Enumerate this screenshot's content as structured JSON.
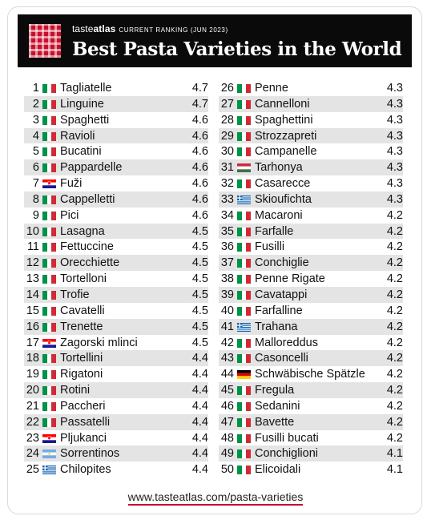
{
  "header": {
    "brand_regular": "taste",
    "brand_bold": "atlas",
    "ranking": "CURRENT RANKING (JUN 2023)",
    "title": "Best Pasta Varieties in the World"
  },
  "colors": {
    "accent_red": "#c8102e",
    "row_shade": "#e4e4e4",
    "header_bg": "#0a0a0a"
  },
  "flags": {
    "it": "italy-flag-icon",
    "hr": "croatia-flag-icon",
    "hu": "hungary-flag-icon",
    "gr": "greece-flag-icon",
    "de": "germany-flag-icon",
    "ar": "argentina-flag-icon"
  },
  "left_items": [
    {
      "rank": "1",
      "flag": "it",
      "name": "Tagliatelle",
      "score": "4.7"
    },
    {
      "rank": "2",
      "flag": "it",
      "name": "Linguine",
      "score": "4.7"
    },
    {
      "rank": "3",
      "flag": "it",
      "name": "Spaghetti",
      "score": "4.6"
    },
    {
      "rank": "4",
      "flag": "it",
      "name": "Ravioli",
      "score": "4.6"
    },
    {
      "rank": "5",
      "flag": "it",
      "name": "Bucatini",
      "score": "4.6"
    },
    {
      "rank": "6",
      "flag": "it",
      "name": "Pappardelle",
      "score": "4.6"
    },
    {
      "rank": "7",
      "flag": "hr",
      "name": "Fuži",
      "score": "4.6"
    },
    {
      "rank": "8",
      "flag": "it",
      "name": "Cappelletti",
      "score": "4.6"
    },
    {
      "rank": "9",
      "flag": "it",
      "name": "Pici",
      "score": "4.6"
    },
    {
      "rank": "10",
      "flag": "it",
      "name": "Lasagna",
      "score": "4.5"
    },
    {
      "rank": "11",
      "flag": "it",
      "name": "Fettuccine",
      "score": "4.5"
    },
    {
      "rank": "12",
      "flag": "it",
      "name": "Orecchiette",
      "score": "4.5"
    },
    {
      "rank": "13",
      "flag": "it",
      "name": "Tortelloni",
      "score": "4.5"
    },
    {
      "rank": "14",
      "flag": "it",
      "name": "Trofie",
      "score": "4.5"
    },
    {
      "rank": "15",
      "flag": "it",
      "name": "Cavatelli",
      "score": "4.5"
    },
    {
      "rank": "16",
      "flag": "it",
      "name": "Trenette",
      "score": "4.5"
    },
    {
      "rank": "17",
      "flag": "hr",
      "name": "Zagorski mlinci",
      "score": "4.5"
    },
    {
      "rank": "18",
      "flag": "it",
      "name": "Tortellini",
      "score": "4.4"
    },
    {
      "rank": "19",
      "flag": "it",
      "name": "Rigatoni",
      "score": "4.4"
    },
    {
      "rank": "20",
      "flag": "it",
      "name": "Rotini",
      "score": "4.4"
    },
    {
      "rank": "21",
      "flag": "it",
      "name": "Paccheri",
      "score": "4.4"
    },
    {
      "rank": "22",
      "flag": "it",
      "name": "Passatelli",
      "score": "4.4"
    },
    {
      "rank": "23",
      "flag": "hr",
      "name": "Pljukanci",
      "score": "4.4"
    },
    {
      "rank": "24",
      "flag": "ar",
      "name": "Sorrentinos",
      "score": "4.4"
    },
    {
      "rank": "25",
      "flag": "gr",
      "name": "Chilopites",
      "score": "4.4"
    }
  ],
  "right_items": [
    {
      "rank": "26",
      "flag": "it",
      "name": "Penne",
      "score": "4.3"
    },
    {
      "rank": "27",
      "flag": "it",
      "name": "Cannelloni",
      "score": "4.3"
    },
    {
      "rank": "28",
      "flag": "it",
      "name": "Spaghettini",
      "score": "4.3"
    },
    {
      "rank": "29",
      "flag": "it",
      "name": "Strozzapreti",
      "score": "4.3"
    },
    {
      "rank": "30",
      "flag": "it",
      "name": "Campanelle",
      "score": "4.3"
    },
    {
      "rank": "31",
      "flag": "hu",
      "name": "Tarhonya",
      "score": "4.3"
    },
    {
      "rank": "32",
      "flag": "it",
      "name": "Casarecce",
      "score": "4.3"
    },
    {
      "rank": "33",
      "flag": "gr",
      "name": "Skioufichta",
      "score": "4.3"
    },
    {
      "rank": "34",
      "flag": "it",
      "name": "Macaroni",
      "score": "4.2"
    },
    {
      "rank": "35",
      "flag": "it",
      "name": "Farfalle",
      "score": "4.2"
    },
    {
      "rank": "36",
      "flag": "it",
      "name": "Fusilli",
      "score": "4.2"
    },
    {
      "rank": "37",
      "flag": "it",
      "name": "Conchiglie",
      "score": "4.2"
    },
    {
      "rank": "38",
      "flag": "it",
      "name": "Penne Rigate",
      "score": "4.2"
    },
    {
      "rank": "39",
      "flag": "it",
      "name": "Cavatappi",
      "score": "4.2"
    },
    {
      "rank": "40",
      "flag": "it",
      "name": "Farfalline",
      "score": "4.2"
    },
    {
      "rank": "41",
      "flag": "gr",
      "name": "Trahana",
      "score": "4.2"
    },
    {
      "rank": "42",
      "flag": "it",
      "name": "Malloreddus",
      "score": "4.2"
    },
    {
      "rank": "43",
      "flag": "it",
      "name": "Casoncelli",
      "score": "4.2"
    },
    {
      "rank": "44",
      "flag": "de",
      "name": "Schwäbische Spätzle",
      "score": "4.2"
    },
    {
      "rank": "45",
      "flag": "it",
      "name": "Fregula",
      "score": "4.2"
    },
    {
      "rank": "46",
      "flag": "it",
      "name": "Sedanini",
      "score": "4.2"
    },
    {
      "rank": "47",
      "flag": "it",
      "name": "Bavette",
      "score": "4.2"
    },
    {
      "rank": "48",
      "flag": "it",
      "name": "Fusilli bucati",
      "score": "4.2"
    },
    {
      "rank": "49",
      "flag": "it",
      "name": "Conchiglioni",
      "score": "4.1"
    },
    {
      "rank": "50",
      "flag": "it",
      "name": "Elicoidali",
      "score": "4.1"
    }
  ],
  "footer": {
    "url": "www.tasteatlas.com/pasta-varieties"
  }
}
